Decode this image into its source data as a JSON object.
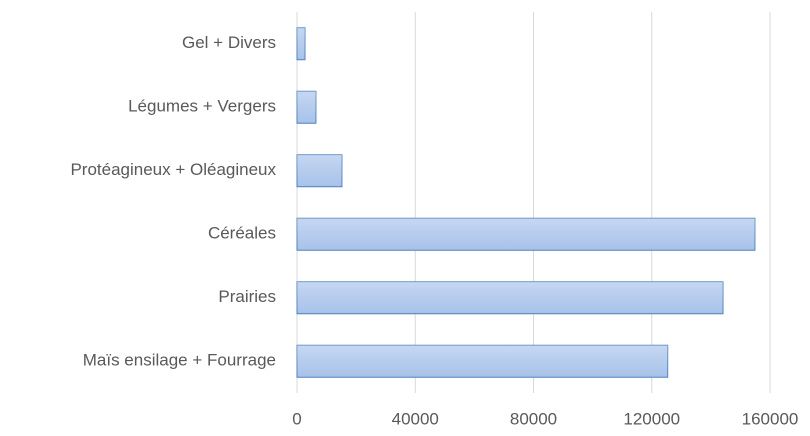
{
  "chart_data": {
    "type": "barh",
    "categories": [
      "Gel + Divers",
      "Légumes + Vergers",
      "Protéagineux + Oléagineux",
      "Céréales",
      "Prairies",
      "Maïs ensilage + Fourrage"
    ],
    "values": [
      2700,
      6400,
      15200,
      154900,
      144100,
      125400
    ],
    "color": "#a7c2ea",
    "xlim": [
      0,
      160000
    ],
    "xticks": [
      0,
      40000,
      80000,
      120000,
      160000
    ],
    "grid": true
  }
}
